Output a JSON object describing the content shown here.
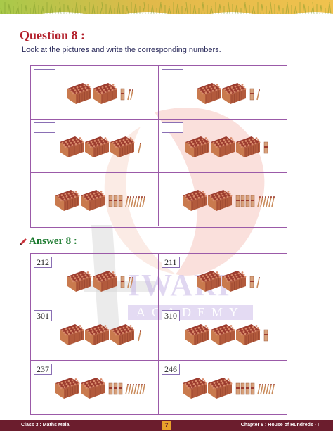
{
  "question": {
    "title": "Question 8 :",
    "instruction": "Look at the pictures and write the corresponding numbers."
  },
  "answer": {
    "title": "Answer 8 :",
    "values": [
      "212",
      "211",
      "301",
      "310",
      "237",
      "246"
    ]
  },
  "picture_counts": [
    {
      "hundreds": 2,
      "tens": 1,
      "ones": 2
    },
    {
      "hundreds": 2,
      "tens": 1,
      "ones": 1
    },
    {
      "hundreds": 3,
      "tens": 0,
      "ones": 1
    },
    {
      "hundreds": 3,
      "tens": 1,
      "ones": 0
    },
    {
      "hundreds": 2,
      "tens": 3,
      "ones": 7
    },
    {
      "hundreds": 2,
      "tens": 4,
      "ones": 6
    }
  ],
  "watermark": {
    "word1": "IWARI",
    "word2": "ACADEMY"
  },
  "footer": {
    "left": "Class 3 : Maths Mela",
    "page": "7",
    "right": "Chapter 6 : House of Hundreds - I"
  },
  "colors": {
    "heading_red": "#b3202b",
    "answer_green": "#1b7a2e",
    "grid_purple": "#9b5aa8",
    "footer_maroon": "#6b1d2d",
    "page_badge": "#e9a12b"
  }
}
